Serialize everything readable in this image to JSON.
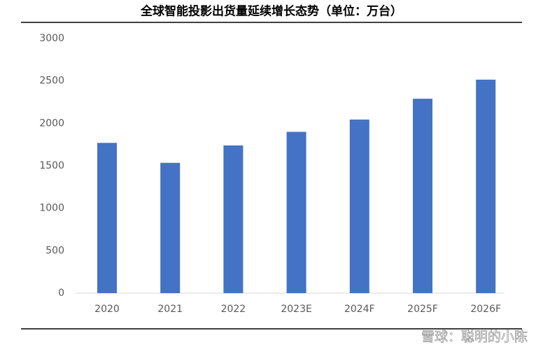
{
  "chart_data": {
    "type": "bar",
    "title": "全球智能投影出货量延续增长态势（单位：万台）",
    "categories": [
      "2020",
      "2021",
      "2022",
      "2023E",
      "2024F",
      "2025F",
      "2026F"
    ],
    "values": [
      1770,
      1535,
      1740,
      1900,
      2045,
      2290,
      2515
    ],
    "color": "#4472c4",
    "ylim": [
      0,
      3000
    ],
    "yticks": [
      0,
      500,
      1000,
      1500,
      2000,
      2500,
      3000
    ],
    "grid": false,
    "watermark": "雪球：聪明的小陈"
  }
}
